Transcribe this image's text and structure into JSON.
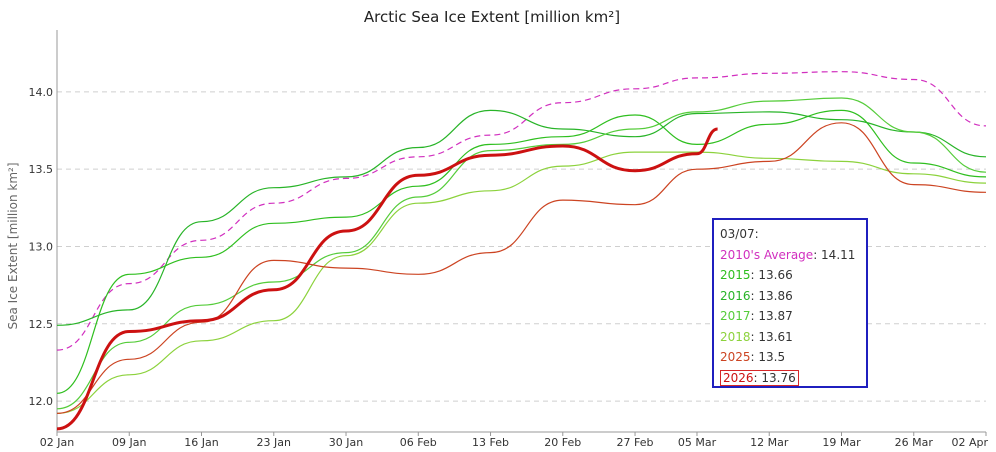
{
  "chart_data": {
    "type": "line",
    "title": "Arctic Sea Ice Extent [million km²]",
    "ylabel": "Sea Ice Extent [million km²]",
    "xlabel": "",
    "ylim": [
      11.8,
      14.4
    ],
    "yticks": [
      12.0,
      12.5,
      13.0,
      13.5,
      14.0
    ],
    "ytick_labels": [
      "12.0",
      "12.5",
      "13.0",
      "13.5",
      "14.0"
    ],
    "x_start": "02 Jan",
    "x_end": "02 Apr",
    "x_ticks": [
      "02 Jan",
      "09 Jan",
      "16 Jan",
      "23 Jan",
      "30 Jan",
      "06 Feb",
      "13 Feb",
      "20 Feb",
      "27 Feb",
      "05 Mar",
      "12 Mar",
      "19 Mar",
      "26 Mar",
      "02 Apr"
    ],
    "grid": "horizontal dashed",
    "series": [
      {
        "name": "2010's Average",
        "color": "#d12fbf",
        "dash": true,
        "width": 1.2,
        "x_dates": [
          "02 Jan",
          "09 Jan",
          "16 Jan",
          "23 Jan",
          "30 Jan",
          "06 Feb",
          "13 Feb",
          "20 Feb",
          "27 Feb",
          "05 Mar",
          "12 Mar",
          "19 Mar",
          "26 Mar",
          "02 Apr"
        ],
        "values": [
          12.33,
          12.76,
          13.04,
          13.28,
          13.44,
          13.58,
          13.72,
          13.93,
          14.02,
          14.09,
          14.12,
          14.13,
          14.08,
          13.78
        ]
      },
      {
        "name": "2015",
        "color": "#2fbf1f",
        "dash": false,
        "width": 1.2,
        "x_dates": [
          "02 Jan",
          "09 Jan",
          "16 Jan",
          "23 Jan",
          "30 Jan",
          "06 Feb",
          "13 Feb",
          "20 Feb",
          "27 Feb",
          "05 Mar",
          "12 Mar",
          "19 Mar",
          "26 Mar",
          "02 Apr"
        ],
        "values": [
          12.05,
          12.82,
          12.93,
          13.15,
          13.19,
          13.39,
          13.66,
          13.71,
          13.85,
          13.66,
          13.79,
          13.88,
          13.54,
          13.45
        ]
      },
      {
        "name": "2016",
        "color": "#28b428",
        "dash": false,
        "width": 1.2,
        "x_dates": [
          "02 Jan",
          "09 Jan",
          "16 Jan",
          "23 Jan",
          "30 Jan",
          "06 Feb",
          "13 Feb",
          "20 Feb",
          "27 Feb",
          "05 Mar",
          "12 Mar",
          "19 Mar",
          "26 Mar",
          "02 Apr"
        ],
        "values": [
          12.49,
          12.59,
          13.16,
          13.38,
          13.45,
          13.64,
          13.88,
          13.76,
          13.71,
          13.86,
          13.87,
          13.82,
          13.74,
          13.58
        ]
      },
      {
        "name": "2017",
        "color": "#55cc3a",
        "dash": false,
        "width": 1.2,
        "x_dates": [
          "02 Jan",
          "09 Jan",
          "16 Jan",
          "23 Jan",
          "30 Jan",
          "06 Feb",
          "13 Feb",
          "20 Feb",
          "27 Feb",
          "05 Mar",
          "12 Mar",
          "19 Mar",
          "26 Mar",
          "02 Apr"
        ],
        "values": [
          11.95,
          12.38,
          12.62,
          12.77,
          12.96,
          13.32,
          13.62,
          13.66,
          13.76,
          13.87,
          13.94,
          13.96,
          13.74,
          13.48
        ]
      },
      {
        "name": "2018",
        "color": "#8cd23c",
        "dash": false,
        "width": 1.2,
        "x_dates": [
          "02 Jan",
          "09 Jan",
          "16 Jan",
          "23 Jan",
          "30 Jan",
          "06 Feb",
          "13 Feb",
          "20 Feb",
          "27 Feb",
          "05 Mar",
          "12 Mar",
          "19 Mar",
          "26 Mar",
          "02 Apr"
        ],
        "values": [
          11.92,
          12.17,
          12.39,
          12.52,
          12.94,
          13.28,
          13.36,
          13.52,
          13.61,
          13.61,
          13.57,
          13.55,
          13.47,
          13.41
        ]
      },
      {
        "name": "2025",
        "color": "#cc4422",
        "dash": false,
        "width": 1.2,
        "x_dates": [
          "02 Jan",
          "09 Jan",
          "16 Jan",
          "23 Jan",
          "30 Jan",
          "06 Feb",
          "13 Feb",
          "20 Feb",
          "27 Feb",
          "05 Mar",
          "12 Mar",
          "19 Mar",
          "26 Mar",
          "02 Apr"
        ],
        "values": [
          11.92,
          12.27,
          12.51,
          12.91,
          12.86,
          12.82,
          12.96,
          13.3,
          13.27,
          13.5,
          13.55,
          13.8,
          13.4,
          13.35
        ]
      },
      {
        "name": "2026",
        "color": "#cc1111",
        "dash": false,
        "width": 3,
        "x_dates": [
          "02 Jan",
          "09 Jan",
          "16 Jan",
          "23 Jan",
          "30 Jan",
          "06 Feb",
          "13 Feb",
          "20 Feb",
          "27 Feb",
          "05 Mar",
          "07 Mar"
        ],
        "values": [
          11.82,
          12.45,
          12.52,
          12.72,
          13.1,
          13.46,
          13.59,
          13.65,
          13.49,
          13.6,
          13.76
        ]
      }
    ]
  },
  "tooltip": {
    "date": "03/07:",
    "rows": [
      {
        "name": "2010's Average",
        "value": ": 14.11",
        "color": "#d12fbf",
        "boxed": false
      },
      {
        "name": "2015",
        "value": ": 13.66",
        "color": "#2fbf1f",
        "boxed": false
      },
      {
        "name": "2016",
        "value": ": 13.86",
        "color": "#28b428",
        "boxed": false
      },
      {
        "name": "2017",
        "value": ": 13.87",
        "color": "#55cc3a",
        "boxed": false
      },
      {
        "name": "2018",
        "value": ": 13.61",
        "color": "#8cd23c",
        "boxed": false
      },
      {
        "name": "2025",
        "value": ": 13.5",
        "color": "#cc4422",
        "boxed": false
      },
      {
        "name": "2026",
        "value": ": 13.76",
        "color": "#cc1111",
        "boxed": true
      }
    ]
  }
}
